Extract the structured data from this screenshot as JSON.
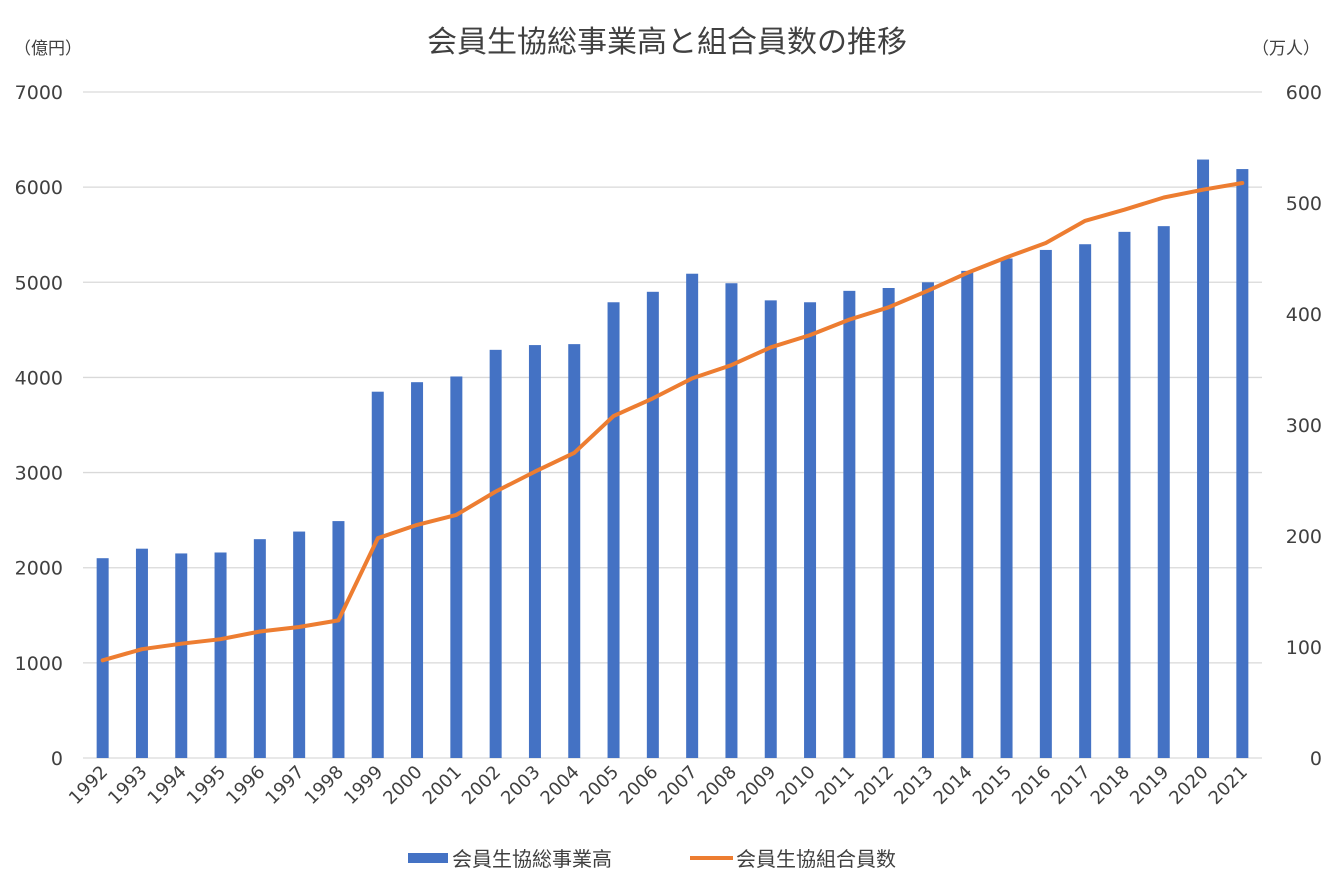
{
  "chart_data": {
    "type": "bar",
    "title": "会員生協総事業高と組合員数の推移",
    "y_left_unit": "（億円）",
    "y_right_unit": "（万人）",
    "ylim_left": [
      0,
      7000
    ],
    "ylim_right": [
      0,
      600
    ],
    "yticks_left": [
      "0",
      "1000",
      "2000",
      "3000",
      "4000",
      "5000",
      "6000",
      "7000"
    ],
    "yticks_right": [
      "0",
      "100",
      "200",
      "300",
      "400",
      "500",
      "600"
    ],
    "grid": true,
    "legend_position": "bottom",
    "categories": [
      "1992",
      "1993",
      "1994",
      "1995",
      "1996",
      "1997",
      "1998",
      "1999",
      "2000",
      "2001",
      "2002",
      "2003",
      "2004",
      "2005",
      "2006",
      "2007",
      "2008",
      "2009",
      "2010",
      "2011",
      "2012",
      "2013",
      "2014",
      "2015",
      "2016",
      "2017",
      "2018",
      "2019",
      "2020",
      "2021"
    ],
    "series": [
      {
        "name": "会員生協総事業高",
        "type": "bar",
        "axis": "left",
        "color": "#4472c4",
        "values": [
          2100,
          2200,
          2150,
          2160,
          2300,
          2380,
          2490,
          3850,
          3950,
          4010,
          4290,
          4340,
          4350,
          4790,
          4900,
          5090,
          4990,
          4810,
          4790,
          4910,
          4940,
          5000,
          5120,
          5250,
          5340,
          5400,
          5530,
          5590,
          6290,
          6190
        ]
      },
      {
        "name": "会員生協組合員数",
        "type": "line",
        "axis": "right",
        "color": "#ed7d31",
        "values": [
          88,
          98,
          103,
          107,
          114,
          118,
          124,
          198,
          210,
          219,
          240,
          258,
          275,
          308,
          324,
          342,
          354,
          370,
          381,
          395,
          406,
          421,
          437,
          451,
          464,
          484,
          494,
          505,
          512,
          518
        ]
      }
    ]
  }
}
